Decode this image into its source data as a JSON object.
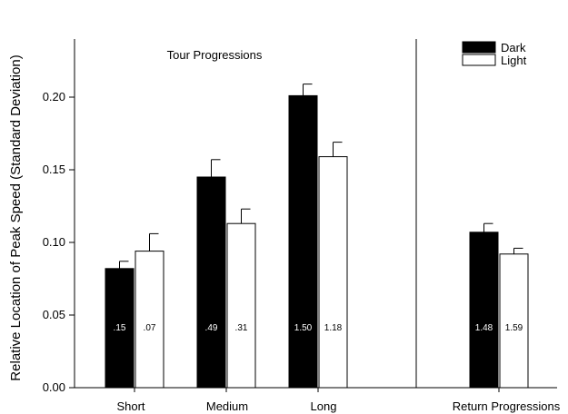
{
  "chart_data": {
    "type": "bar",
    "ylabel": "Relative Location of Peak Speed (Standard Deviation)",
    "ylim": [
      0,
      0.24
    ],
    "yticks": [
      "0.00",
      "0.05",
      "0.10",
      "0.15",
      "0.20"
    ],
    "ytick_values": [
      0,
      0.05,
      0.1,
      0.15,
      0.2
    ],
    "annotation_tour": "Tour Progressions",
    "categories": [
      "Short",
      "Medium",
      "Long",
      "Return Progressions"
    ],
    "series": [
      {
        "name": "Dark",
        "color": "#000000",
        "values": [
          0.082,
          0.145,
          0.201,
          0.107
        ],
        "errors": [
          0.005,
          0.012,
          0.008,
          0.006
        ],
        "labels": [
          ".15",
          ".49",
          "1.50",
          "1.48"
        ]
      },
      {
        "name": "Light",
        "color": "#ffffff",
        "values": [
          0.094,
          0.113,
          0.159,
          0.092
        ],
        "errors": [
          0.012,
          0.01,
          0.01,
          0.004
        ],
        "labels": [
          ".07",
          ".31",
          "1.18",
          "1.59"
        ]
      }
    ],
    "legend_position": "top-right",
    "grid": false
  }
}
